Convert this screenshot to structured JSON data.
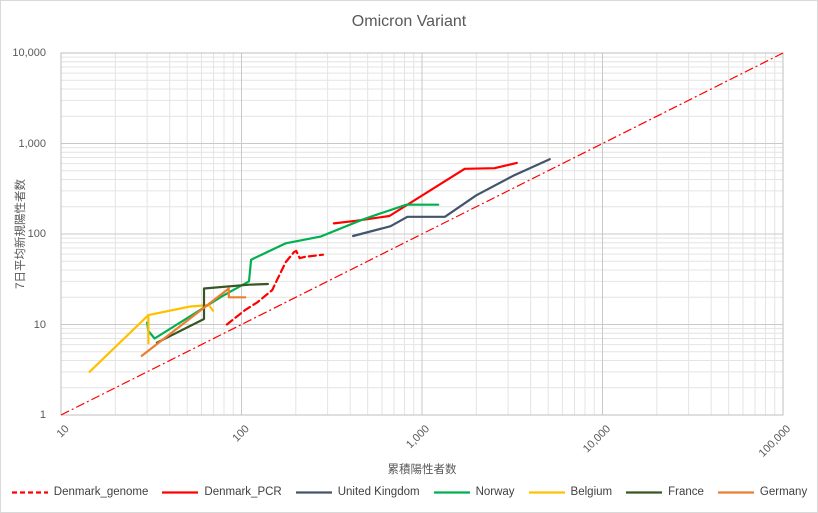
{
  "title": "Omicron Variant",
  "axes": {
    "x": {
      "label": "累積陽性者数",
      "scale": "log",
      "min": 10,
      "max": 100000,
      "ticks": [
        "10",
        "100",
        "1,000",
        "10,000",
        "100,000"
      ]
    },
    "y": {
      "label": "7日平均新規陽性者数",
      "scale": "log",
      "min": 1,
      "max": 10000,
      "ticks": [
        "10,000",
        "1,000",
        "100",
        "10",
        "1"
      ]
    }
  },
  "colors": {
    "grid_minor": "#e4e4e4",
    "grid_major": "#c9c9c9",
    "plot_border": "#bfbfbf",
    "text": "#595959",
    "reference": "#ff0000"
  },
  "chart_data": {
    "type": "line",
    "title": "Omicron Variant",
    "xlabel": "累積陽性者数",
    "ylabel": "7日平均新規陽性者数",
    "x_scale": "log",
    "y_scale": "log",
    "xlim": [
      10,
      100000
    ],
    "ylim": [
      1,
      10000
    ],
    "grid": "log major + minor, both axes",
    "legend_position": "bottom",
    "reference_line": {
      "name": "diagonal y = x/10",
      "color": "#ff0000",
      "style": "dash-dot",
      "points": [
        [
          10,
          1
        ],
        [
          100000,
          10000
        ]
      ]
    },
    "series": [
      {
        "name": "Denmark_genome",
        "color": "#ff0000",
        "dash": "dashed",
        "points": [
          [
            83,
            10
          ],
          [
            105,
            14.5
          ],
          [
            122,
            17.5
          ],
          [
            148,
            24
          ],
          [
            162,
            35
          ],
          [
            176,
            49
          ],
          [
            195,
            63
          ],
          [
            201,
            65
          ],
          [
            210,
            54
          ],
          [
            225,
            56
          ],
          [
            283,
            59
          ]
        ]
      },
      {
        "name": "Denmark_PCR",
        "color": "#ff0000",
        "dash": "solid",
        "points": [
          [
            325,
            131
          ],
          [
            430,
            140
          ],
          [
            660,
            158
          ],
          [
            1725,
            525
          ],
          [
            2520,
            533
          ],
          [
            3350,
            610
          ]
        ]
      },
      {
        "name": "United Kingdom",
        "color": "#44546a",
        "dash": "solid",
        "points": [
          [
            415,
            95
          ],
          [
            670,
            122
          ],
          [
            830,
            155
          ],
          [
            1340,
            155
          ],
          [
            2000,
            268
          ],
          [
            3200,
            440
          ],
          [
            5100,
            670
          ]
        ]
      },
      {
        "name": "Norway",
        "color": "#00b050",
        "dash": "solid",
        "points": [
          [
            30,
            10.5
          ],
          [
            30.5,
            8.5
          ],
          [
            33,
            7
          ],
          [
            78,
            20.5
          ],
          [
            110,
            30
          ],
          [
            113,
            52
          ],
          [
            176,
            79
          ],
          [
            276,
            94
          ],
          [
            459,
            142
          ],
          [
            558,
            163
          ],
          [
            820,
            211
          ],
          [
            1230,
            211
          ]
        ]
      },
      {
        "name": "Belgium",
        "color": "#ffc000",
        "dash": "solid",
        "points": [
          [
            14.4,
            3
          ],
          [
            30.5,
            12.7
          ],
          [
            30.5,
            6.2
          ],
          [
            30.5,
            12.7
          ],
          [
            52,
            15.8
          ],
          [
            66,
            16.4
          ],
          [
            69.5,
            14.2
          ]
        ]
      },
      {
        "name": "France",
        "color": "#375623",
        "dash": "solid",
        "points": [
          [
            34,
            6.3
          ],
          [
            62,
            11.5
          ],
          [
            62,
            25
          ],
          [
            110,
            27.5
          ],
          [
            140,
            28
          ]
        ]
      },
      {
        "name": "Germany",
        "color": "#ed7d31",
        "dash": "solid",
        "points": [
          [
            28,
            4.5
          ],
          [
            85,
            25
          ],
          [
            85,
            20
          ],
          [
            105,
            20
          ]
        ]
      }
    ]
  }
}
